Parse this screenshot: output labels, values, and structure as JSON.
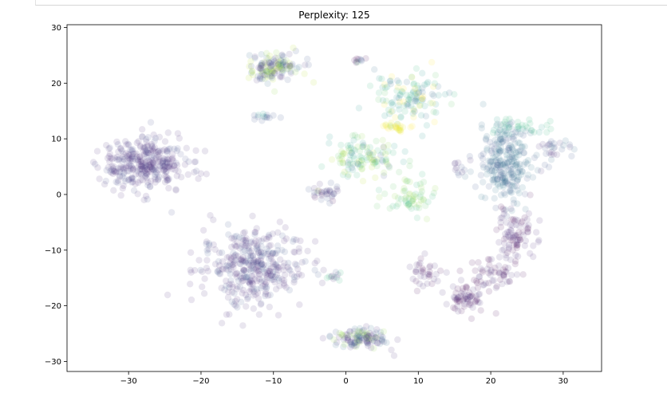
{
  "chart_data": {
    "type": "scatter",
    "title": "Perplexity: 125",
    "xlabel": "",
    "ylabel": "",
    "xlim": [
      -38.5,
      35.3
    ],
    "ylim": [
      -31.8,
      30.5
    ],
    "x_ticks": [
      -30,
      -20,
      -10,
      0,
      10,
      20,
      30
    ],
    "y_ticks": [
      -30,
      -20,
      -10,
      0,
      10,
      20,
      30
    ],
    "x_tick_labels": [
      "−30",
      "−20",
      "−10",
      "0",
      "10",
      "20",
      "30"
    ],
    "y_tick_labels": [
      "−30",
      "−20",
      "−10",
      "0",
      "10",
      "20",
      "30"
    ],
    "grid": false,
    "legend": "none",
    "point_alpha": 0.12,
    "colormap": "viridis",
    "clusters": [
      {
        "cx": -28.0,
        "cy": 5.5,
        "sx": 4.2,
        "sy": 3.4,
        "n": 340,
        "colors": [
          "#46327e",
          "#482878",
          "#3e4989"
        ]
      },
      {
        "cx": -13.0,
        "cy": -13.0,
        "sx": 5.0,
        "sy": 4.8,
        "n": 380,
        "colors": [
          "#482878",
          "#46327e",
          "#3b528b"
        ]
      },
      {
        "cx": -10.0,
        "cy": 23.0,
        "sx": 2.8,
        "sy": 1.9,
        "n": 140,
        "colors": [
          "#8fd744",
          "#3b528b",
          "#31688e",
          "#46327e",
          "#b5de2b"
        ]
      },
      {
        "cx": -11.5,
        "cy": 14.0,
        "sx": 1.2,
        "sy": 0.4,
        "n": 14,
        "colors": [
          "#3b528b",
          "#1f9e89"
        ]
      },
      {
        "cx": 22.0,
        "cy": 5.0,
        "sx": 2.2,
        "sy": 4.5,
        "n": 230,
        "colors": [
          "#31688e",
          "#2c728e",
          "#3b528b"
        ]
      },
      {
        "cx": 23.5,
        "cy": 12.0,
        "sx": 3.5,
        "sy": 1.2,
        "n": 50,
        "colors": [
          "#35b779",
          "#1f9e89",
          "#31688e"
        ]
      },
      {
        "cx": 28.5,
        "cy": 8.0,
        "sx": 1.8,
        "sy": 2.2,
        "n": 30,
        "colors": [
          "#31688e",
          "#46327e",
          "#3b528b"
        ]
      },
      {
        "cx": 23.5,
        "cy": -7.5,
        "sx": 2.0,
        "sy": 3.2,
        "n": 90,
        "colors": [
          "#46327e",
          "#482878",
          "#440154"
        ]
      },
      {
        "cx": 20.5,
        "cy": -14.0,
        "sx": 2.2,
        "sy": 2.0,
        "n": 50,
        "colors": [
          "#46327e",
          "#440154"
        ]
      },
      {
        "cx": 16.5,
        "cy": -18.5,
        "sx": 1.9,
        "sy": 1.8,
        "n": 70,
        "colors": [
          "#440154",
          "#46327e"
        ]
      },
      {
        "cx": 11.0,
        "cy": -14.0,
        "sx": 2.0,
        "sy": 2.0,
        "n": 35,
        "colors": [
          "#46327e",
          "#440154"
        ]
      },
      {
        "cx": 9.0,
        "cy": 17.5,
        "sx": 3.6,
        "sy": 3.2,
        "n": 120,
        "colors": [
          "#1f9e89",
          "#21918c",
          "#31688e",
          "#5ec962",
          "#fde725",
          "#35b779"
        ]
      },
      {
        "cx": 7.0,
        "cy": 12.0,
        "sx": 1.6,
        "sy": 0.5,
        "n": 24,
        "colors": [
          "#fde725",
          "#dde318"
        ]
      },
      {
        "cx": 2.5,
        "cy": 6.5,
        "sx": 4.0,
        "sy": 3.0,
        "n": 120,
        "colors": [
          "#5ec962",
          "#35b779",
          "#1f9e89",
          "#b5de2b",
          "#3b528b",
          "#8fd744"
        ]
      },
      {
        "cx": -3.0,
        "cy": 0.5,
        "sx": 1.5,
        "sy": 1.3,
        "n": 30,
        "colors": [
          "#3b528b",
          "#46327e",
          "#440154"
        ]
      },
      {
        "cx": 8.5,
        "cy": -0.5,
        "sx": 2.6,
        "sy": 2.0,
        "n": 60,
        "colors": [
          "#5ec962",
          "#35b779",
          "#8fd744"
        ]
      },
      {
        "cx": 2.0,
        "cy": -26.0,
        "sx": 2.6,
        "sy": 1.4,
        "n": 120,
        "colors": [
          "#46327e",
          "#31688e",
          "#8fd744",
          "#3b528b",
          "#482878"
        ]
      },
      {
        "cx": -2.0,
        "cy": -15.0,
        "sx": 1.2,
        "sy": 0.8,
        "n": 14,
        "colors": [
          "#3b528b",
          "#46327e",
          "#35b779"
        ]
      },
      {
        "cx": 1.5,
        "cy": 24.0,
        "sx": 0.9,
        "sy": 0.4,
        "n": 10,
        "colors": [
          "#3b528b",
          "#440154",
          "#5ec962"
        ]
      },
      {
        "cx": 16.0,
        "cy": 5.5,
        "sx": 1.4,
        "sy": 1.3,
        "n": 14,
        "colors": [
          "#3b528b",
          "#31688e",
          "#46327e"
        ]
      }
    ]
  }
}
